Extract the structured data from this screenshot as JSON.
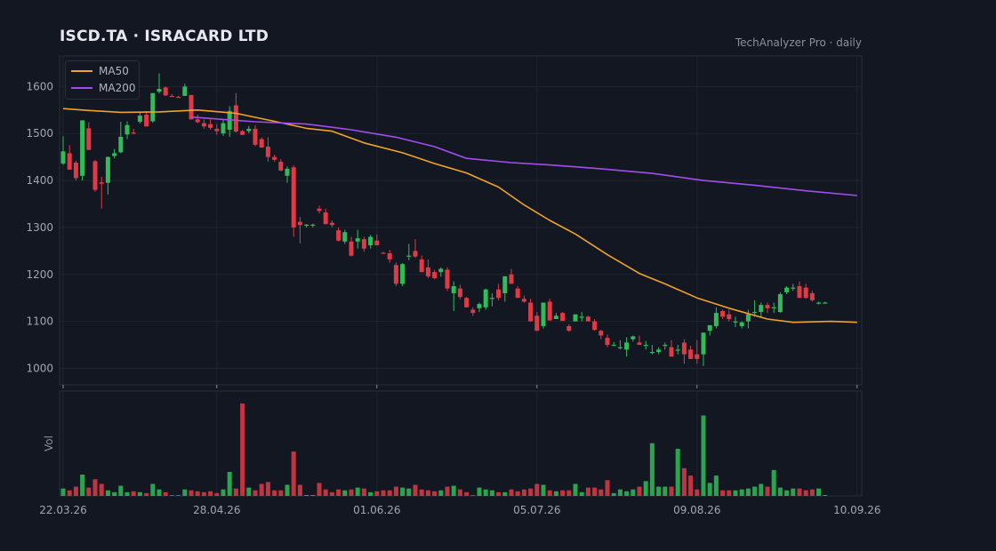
{
  "header": {
    "title": "ISCD.TA  ·  ISRACARD LTD",
    "source": "TechAnalyzer Pro · daily"
  },
  "colors": {
    "background": "#131722",
    "grid": "#1f2430",
    "up": "#2ebd59",
    "down": "#e03a46",
    "ma50": "#f0a32a",
    "ma200": "#a24dee"
  },
  "chart_data": {
    "type": "candlestick",
    "title": "ISCD.TA  ·  ISRACARD LTD",
    "interval": "daily",
    "price_axis": {
      "ylim": [
        965,
        1665
      ],
      "ticks": [
        1000,
        1100,
        1200,
        1300,
        1400,
        1500,
        1600
      ]
    },
    "volume_axis": {
      "label": "Vol",
      "ylim": [
        0,
        100
      ]
    },
    "x_axis": {
      "tick_labels": [
        "22.03.26",
        "28.04.26",
        "01.06.26",
        "05.07.26",
        "09.08.26",
        "10.09.26"
      ],
      "tick_index": [
        0,
        24,
        49,
        74,
        99,
        124
      ]
    },
    "grid": true,
    "legend": {
      "placement": "top-left",
      "entries": [
        "MA50",
        "MA200"
      ]
    },
    "series": [
      {
        "name": "MA50",
        "x": [
          0,
          4,
          9,
          15,
          21,
          27,
          33,
          38,
          42,
          47,
          53,
          58,
          63,
          68,
          72,
          76,
          80,
          85,
          90,
          94,
          99,
          104,
          110,
          114,
          120,
          124
        ],
        "values": [
          1553,
          1549,
          1545,
          1546,
          1550,
          1543,
          1526,
          1511,
          1505,
          1480,
          1459,
          1436,
          1416,
          1386,
          1348,
          1315,
          1286,
          1242,
          1202,
          1180,
          1150,
          1128,
          1105,
          1098,
          1100,
          1098
        ]
      },
      {
        "name": "MA200",
        "x": [
          20,
          30,
          38,
          45,
          52,
          58,
          63,
          70,
          76,
          84,
          92,
          100,
          108,
          116,
          124
        ],
        "values": [
          1535,
          1525,
          1520,
          1508,
          1492,
          1472,
          1447,
          1438,
          1433,
          1425,
          1415,
          1400,
          1390,
          1378,
          1368
        ]
      }
    ],
    "candles": [
      [
        1436,
        1494,
        1433,
        1462,
        8
      ],
      [
        1458,
        1475,
        1426,
        1423,
        6
      ],
      [
        1438,
        1442,
        1400,
        1405,
        10
      ],
      [
        1410,
        1528,
        1400,
        1528,
        23
      ],
      [
        1511,
        1524,
        1465,
        1465,
        9
      ],
      [
        1441,
        1444,
        1376,
        1380,
        18
      ],
      [
        1396,
        1408,
        1340,
        1393,
        13
      ],
      [
        1395,
        1451,
        1370,
        1450,
        6
      ],
      [
        1452,
        1467,
        1447,
        1458,
        4
      ],
      [
        1460,
        1525,
        1458,
        1493,
        11
      ],
      [
        1498,
        1526,
        1488,
        1518,
        4
      ],
      [
        1502,
        1510,
        1498,
        1500,
        5
      ],
      [
        1525,
        1545,
        1521,
        1538,
        4
      ],
      [
        1540,
        1548,
        1515,
        1515,
        3
      ],
      [
        1526,
        1586,
        1523,
        1586,
        13
      ],
      [
        1589,
        1628,
        1585,
        1595,
        7
      ],
      [
        1598,
        1600,
        1580,
        1581,
        4
      ],
      [
        1580,
        1584,
        1579,
        1579,
        0
      ],
      [
        1578,
        1580,
        1576,
        1576,
        0
      ],
      [
        1580,
        1606,
        1580,
        1600,
        7
      ],
      [
        1582,
        1582,
        1530,
        1530,
        6
      ],
      [
        1530,
        1540,
        1522,
        1524,
        5
      ],
      [
        1522,
        1530,
        1510,
        1515,
        4
      ],
      [
        1520,
        1530,
        1508,
        1512,
        5
      ],
      [
        1510,
        1520,
        1497,
        1505,
        3
      ],
      [
        1500,
        1530,
        1495,
        1522,
        7
      ],
      [
        1508,
        1558,
        1493,
        1548,
        26
      ],
      [
        1560,
        1586,
        1502,
        1504,
        8
      ],
      [
        1505,
        1508,
        1497,
        1497,
        100
      ],
      [
        1505,
        1516,
        1500,
        1510,
        9
      ],
      [
        1510,
        1518,
        1473,
        1476,
        6
      ],
      [
        1488,
        1492,
        1470,
        1470,
        13
      ],
      [
        1472,
        1492,
        1440,
        1450,
        15
      ],
      [
        1450,
        1455,
        1440,
        1444,
        6
      ],
      [
        1440,
        1445,
        1420,
        1421,
        6
      ],
      [
        1410,
        1430,
        1395,
        1425,
        12
      ],
      [
        1428,
        1432,
        1280,
        1300,
        48
      ],
      [
        1312,
        1322,
        1266,
        1305,
        12
      ],
      [
        1305,
        1307,
        1300,
        1306,
        0
      ],
      [
        1306,
        1308,
        1300,
        1306,
        0
      ],
      [
        1340,
        1346,
        1330,
        1335,
        14
      ],
      [
        1332,
        1340,
        1307,
        1307,
        7
      ],
      [
        1310,
        1315,
        1300,
        1305,
        4
      ],
      [
        1294,
        1300,
        1270,
        1272,
        7
      ],
      [
        1270,
        1295,
        1265,
        1290,
        6
      ],
      [
        1270,
        1280,
        1238,
        1240,
        7
      ],
      [
        1270,
        1295,
        1255,
        1277,
        9
      ],
      [
        1275,
        1280,
        1248,
        1255,
        8
      ],
      [
        1262,
        1284,
        1255,
        1280,
        4
      ],
      [
        1272,
        1285,
        1262,
        1262,
        5
      ],
      [
        1246,
        1248,
        1245,
        1245,
        6
      ],
      [
        1245,
        1252,
        1225,
        1232,
        6
      ],
      [
        1220,
        1225,
        1175,
        1180,
        10
      ],
      [
        1180,
        1224,
        1175,
        1222,
        9
      ],
      [
        1240,
        1265,
        1230,
        1240,
        8
      ],
      [
        1250,
        1275,
        1235,
        1238,
        12
      ],
      [
        1232,
        1240,
        1205,
        1205,
        7
      ],
      [
        1215,
        1232,
        1192,
        1196,
        6
      ],
      [
        1205,
        1210,
        1190,
        1192,
        5
      ],
      [
        1205,
        1215,
        1195,
        1212,
        6
      ],
      [
        1210,
        1215,
        1165,
        1170,
        10
      ],
      [
        1160,
        1185,
        1122,
        1175,
        11
      ],
      [
        1170,
        1178,
        1148,
        1152,
        7
      ],
      [
        1150,
        1152,
        1130,
        1130,
        4
      ],
      [
        1125,
        1130,
        1112,
        1118,
        0
      ],
      [
        1128,
        1140,
        1120,
        1137,
        9
      ],
      [
        1130,
        1170,
        1125,
        1168,
        7
      ],
      [
        1148,
        1160,
        1132,
        1150,
        6
      ],
      [
        1168,
        1180,
        1145,
        1150,
        4
      ],
      [
        1160,
        1196,
        1142,
        1196,
        4
      ],
      [
        1200,
        1212,
        1180,
        1180,
        7
      ],
      [
        1170,
        1175,
        1150,
        1150,
        5
      ],
      [
        1148,
        1155,
        1140,
        1142,
        7
      ],
      [
        1140,
        1148,
        1100,
        1100,
        8
      ],
      [
        1112,
        1120,
        1080,
        1080,
        13
      ],
      [
        1090,
        1140,
        1085,
        1140,
        12
      ],
      [
        1142,
        1148,
        1102,
        1102,
        6
      ],
      [
        1105,
        1118,
        1105,
        1112,
        5
      ],
      [
        1118,
        1120,
        1101,
        1101,
        6
      ],
      [
        1090,
        1094,
        1078,
        1080,
        6
      ],
      [
        1100,
        1115,
        1105,
        1115,
        13
      ],
      [
        1110,
        1120,
        1100,
        1110,
        4
      ],
      [
        1110,
        1112,
        1100,
        1100,
        9
      ],
      [
        1100,
        1105,
        1080,
        1082,
        9
      ],
      [
        1080,
        1082,
        1062,
        1070,
        7
      ],
      [
        1065,
        1072,
        1045,
        1050,
        17
      ],
      [
        1050,
        1056,
        1048,
        1050,
        3
      ],
      [
        1045,
        1060,
        1040,
        1045,
        7
      ],
      [
        1040,
        1066,
        1025,
        1055,
        5
      ],
      [
        1062,
        1070,
        1057,
        1068,
        7
      ],
      [
        1055,
        1070,
        1050,
        1050,
        10
      ],
      [
        1050,
        1058,
        1040,
        1050,
        16
      ],
      [
        1035,
        1050,
        1030,
        1035,
        57
      ],
      [
        1035,
        1045,
        1030,
        1040,
        10
      ],
      [
        1050,
        1055,
        1040,
        1050,
        10
      ],
      [
        1045,
        1060,
        1030,
        1025,
        10
      ],
      [
        1040,
        1050,
        1030,
        1040,
        51
      ],
      [
        1055,
        1062,
        1010,
        1030,
        30
      ],
      [
        1040,
        1048,
        1020,
        1020,
        22
      ],
      [
        1030,
        1060,
        1010,
        1020,
        7
      ],
      [
        1030,
        1076,
        1005,
        1076,
        87
      ],
      [
        1080,
        1090,
        1070,
        1092,
        14
      ],
      [
        1090,
        1130,
        1085,
        1118,
        22
      ],
      [
        1122,
        1125,
        1105,
        1110,
        6
      ],
      [
        1115,
        1125,
        1100,
        1105,
        6
      ],
      [
        1100,
        1110,
        1088,
        1100,
        6
      ],
      [
        1090,
        1100,
        1085,
        1098,
        7
      ],
      [
        1100,
        1125,
        1085,
        1115,
        8
      ],
      [
        1118,
        1145,
        1110,
        1120,
        10
      ],
      [
        1120,
        1140,
        1110,
        1135,
        13
      ],
      [
        1135,
        1140,
        1118,
        1128,
        10
      ],
      [
        1130,
        1140,
        1118,
        1130,
        28
      ],
      [
        1120,
        1162,
        1118,
        1158,
        9
      ],
      [
        1162,
        1175,
        1158,
        1172,
        6
      ],
      [
        1170,
        1180,
        1165,
        1172,
        8
      ],
      [
        1175,
        1185,
        1150,
        1150,
        8
      ],
      [
        1172,
        1180,
        1148,
        1150,
        6
      ],
      [
        1160,
        1165,
        1142,
        1145,
        7
      ],
      [
        1140,
        1142,
        1136,
        1140,
        8
      ],
      [
        1140,
        1142,
        1138,
        1140,
        0
      ]
    ]
  }
}
